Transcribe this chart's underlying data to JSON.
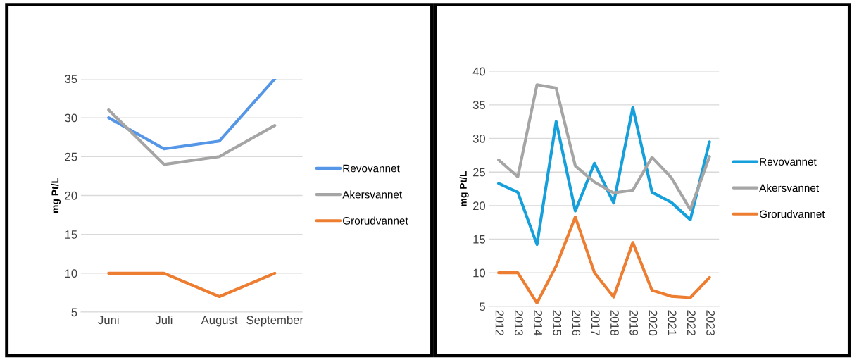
{
  "chart_data": [
    {
      "type": "line",
      "ylabel": "mg Pt/L",
      "categories": [
        "Juni",
        "Juli",
        "August",
        "September"
      ],
      "ylim": [
        5,
        35
      ],
      "yticks": [
        5,
        10,
        15,
        20,
        25,
        30,
        35
      ],
      "grid": "y",
      "legend": "right",
      "series": [
        {
          "name": "Revovannet",
          "color": "#5596e6",
          "values": [
            30,
            26,
            27,
            35
          ]
        },
        {
          "name": "Akersvannet",
          "color": "#a5a5a5",
          "values": [
            31,
            24,
            25,
            29
          ]
        },
        {
          "name": "Grorudvannet",
          "color": "#ed7d31",
          "values": [
            10,
            10,
            7,
            10
          ]
        }
      ]
    },
    {
      "type": "line",
      "ylabel": "mg Pt/L",
      "categories": [
        "2012",
        "2013",
        "2014",
        "2015",
        "2016",
        "2017",
        "2018",
        "2019",
        "2020",
        "2021",
        "2022",
        "2023"
      ],
      "ylim": [
        5,
        40
      ],
      "yticks": [
        5,
        10,
        15,
        20,
        25,
        30,
        35,
        40
      ],
      "grid": "y",
      "legend": "right",
      "series": [
        {
          "name": "Revovannet",
          "color": "#16a0db",
          "values": [
            23.3,
            22,
            14.2,
            32.5,
            19.2,
            26.3,
            20.4,
            34.6,
            22,
            20.5,
            17.9,
            29.5
          ]
        },
        {
          "name": "Akersvannet",
          "color": "#a5a5a5",
          "values": [
            26.8,
            24.3,
            38,
            37.5,
            25.9,
            23.5,
            21.9,
            22.3,
            27.2,
            24.2,
            19.4,
            27.3
          ]
        },
        {
          "name": "Grorudvannet",
          "color": "#ed7d31",
          "values": [
            10,
            10,
            5.5,
            11,
            18.3,
            10,
            6.4,
            14.5,
            7.4,
            6.5,
            6.3,
            9.3
          ]
        }
      ]
    }
  ]
}
